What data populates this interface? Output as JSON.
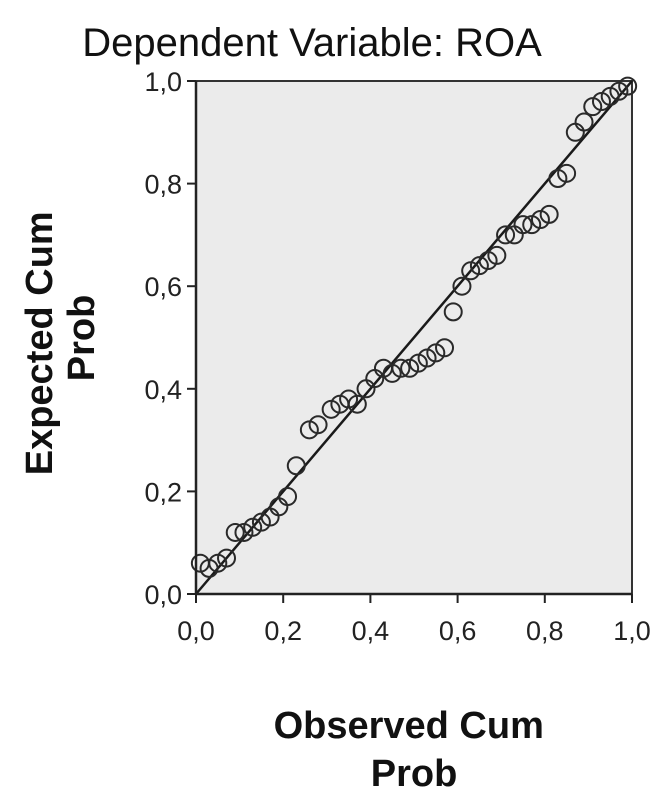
{
  "chart_data": {
    "type": "scatter",
    "title": "Dependent Variable: ROA",
    "xlabel": [
      "Observed Cum",
      "Prob"
    ],
    "ylabel": [
      "Expected Cum",
      "Prob"
    ],
    "xlim": [
      0,
      1
    ],
    "ylim": [
      0,
      1
    ],
    "x_ticks": [
      "0,0",
      "0,2",
      "0,4",
      "0,6",
      "0,8",
      "1,0"
    ],
    "y_ticks": [
      "0,0",
      "0,2",
      "0,4",
      "0,6",
      "0,8",
      "1,0"
    ],
    "grid": false,
    "reference_line": {
      "from": [
        0,
        0
      ],
      "to": [
        1,
        1
      ]
    },
    "series": [
      {
        "x": [
          0.01,
          0.03,
          0.05,
          0.07,
          0.09,
          0.11,
          0.13,
          0.15,
          0.17,
          0.19,
          0.21,
          0.23,
          0.26,
          0.28,
          0.31,
          0.33,
          0.35,
          0.37,
          0.39,
          0.41,
          0.43,
          0.45,
          0.47,
          0.49,
          0.51,
          0.53,
          0.55,
          0.57,
          0.59,
          0.61,
          0.63,
          0.65,
          0.67,
          0.69,
          0.71,
          0.73,
          0.75,
          0.77,
          0.79,
          0.81,
          0.83,
          0.85,
          0.87,
          0.89,
          0.91,
          0.93,
          0.95,
          0.97,
          0.99
        ],
        "y": [
          0.06,
          0.05,
          0.06,
          0.07,
          0.12,
          0.12,
          0.13,
          0.14,
          0.15,
          0.17,
          0.19,
          0.25,
          0.32,
          0.33,
          0.36,
          0.37,
          0.38,
          0.37,
          0.4,
          0.42,
          0.44,
          0.43,
          0.44,
          0.44,
          0.45,
          0.46,
          0.47,
          0.48,
          0.55,
          0.6,
          0.63,
          0.64,
          0.65,
          0.66,
          0.7,
          0.7,
          0.72,
          0.72,
          0.73,
          0.74,
          0.81,
          0.82,
          0.9,
          0.92,
          0.95,
          0.96,
          0.97,
          0.98,
          0.99
        ]
      }
    ]
  },
  "colors": {
    "plot_background": "#ebebeb",
    "marker_stroke": "#2a2a2a",
    "line": "#1a1a1a",
    "axis": "#222222",
    "text": "#111111"
  }
}
